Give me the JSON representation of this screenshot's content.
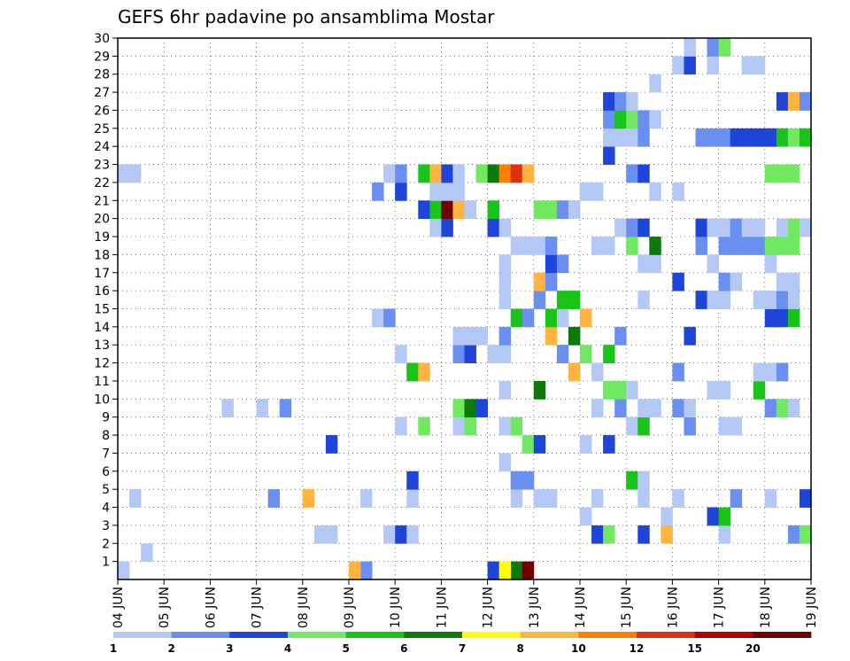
{
  "chart_data": {
    "type": "heatmap",
    "title": "GEFS 6hr padavine po ansamblima Mostar",
    "xlabel": "",
    "ylabel": "",
    "x_tick_labels": [
      "04 JUN",
      "05 JUN",
      "06 JUN",
      "07 JUN",
      "08 JUN",
      "09 JUN",
      "10 JUN",
      "11 JUN",
      "12 JUN",
      "13 JUN",
      "14 JUN",
      "15 JUN",
      "16 JUN",
      "17 JUN",
      "18 JUN",
      "19 JUN"
    ],
    "y_tick_labels": [
      "1",
      "2",
      "3",
      "4",
      "5",
      "6",
      "7",
      "8",
      "9",
      "10",
      "11",
      "12",
      "13",
      "14",
      "15",
      "16",
      "17",
      "18",
      "19",
      "20",
      "21",
      "22",
      "23",
      "24",
      "25",
      "26",
      "27",
      "28",
      "29",
      "30"
    ],
    "xlim": [
      0,
      60
    ],
    "ylim": [
      0,
      30
    ],
    "grid": true,
    "colorbar": {
      "labels": [
        "1",
        "2",
        "3",
        "4",
        "5",
        "6",
        "7",
        "8",
        "10",
        "12",
        "15",
        "20"
      ],
      "colors": [
        "#b4c8f5",
        "#6a8ff0",
        "#1e44d8",
        "#70e860",
        "#18c418",
        "#0b7a0b",
        "#ffff00",
        "#ffb440",
        "#ff8000",
        "#e03010",
        "#b00000",
        "#700000"
      ]
    },
    "cells": [
      {
        "x": 0,
        "y": 0,
        "v": 1
      },
      {
        "x": 21,
        "y": 0,
        "v": 2
      },
      {
        "x": 20,
        "y": 0,
        "v": 8
      },
      {
        "x": 34,
        "y": 0,
        "v": 6
      },
      {
        "x": 35,
        "y": 0,
        "v": 20
      },
      {
        "x": 32,
        "y": 0,
        "v": 3
      },
      {
        "x": 33,
        "y": 0,
        "v": 7
      },
      {
        "x": 2,
        "y": 1,
        "v": 1
      },
      {
        "x": 17,
        "y": 2,
        "v": 1
      },
      {
        "x": 18,
        "y": 2,
        "v": 1
      },
      {
        "x": 23,
        "y": 2,
        "v": 1
      },
      {
        "x": 24,
        "y": 2,
        "v": 3
      },
      {
        "x": 25,
        "y": 2,
        "v": 1
      },
      {
        "x": 41,
        "y": 2,
        "v": 3
      },
      {
        "x": 42,
        "y": 2,
        "v": 4
      },
      {
        "x": 45,
        "y": 2,
        "v": 3
      },
      {
        "x": 47,
        "y": 2,
        "v": 8
      },
      {
        "x": 52,
        "y": 2,
        "v": 1
      },
      {
        "x": 58,
        "y": 2,
        "v": 2
      },
      {
        "x": 59,
        "y": 2,
        "v": 4
      },
      {
        "x": 40,
        "y": 3,
        "v": 1
      },
      {
        "x": 47,
        "y": 3,
        "v": 1
      },
      {
        "x": 51,
        "y": 3,
        "v": 3
      },
      {
        "x": 52,
        "y": 3,
        "v": 5
      },
      {
        "x": 1,
        "y": 4,
        "v": 1
      },
      {
        "x": 16,
        "y": 4,
        "v": 8
      },
      {
        "x": 13,
        "y": 4,
        "v": 2
      },
      {
        "x": 21,
        "y": 4,
        "v": 1
      },
      {
        "x": 25,
        "y": 4,
        "v": 1
      },
      {
        "x": 34,
        "y": 4,
        "v": 1
      },
      {
        "x": 36,
        "y": 4,
        "v": 1
      },
      {
        "x": 37,
        "y": 4,
        "v": 1
      },
      {
        "x": 41,
        "y": 4,
        "v": 1
      },
      {
        "x": 45,
        "y": 4,
        "v": 1
      },
      {
        "x": 48,
        "y": 4,
        "v": 1
      },
      {
        "x": 53,
        "y": 4,
        "v": 2
      },
      {
        "x": 56,
        "y": 4,
        "v": 1
      },
      {
        "x": 59,
        "y": 4,
        "v": 3
      },
      {
        "x": 25,
        "y": 5,
        "v": 3
      },
      {
        "x": 34,
        "y": 5,
        "v": 2
      },
      {
        "x": 35,
        "y": 5,
        "v": 2
      },
      {
        "x": 44,
        "y": 5,
        "v": 5
      },
      {
        "x": 45,
        "y": 5,
        "v": 1
      },
      {
        "x": 33,
        "y": 6,
        "v": 1
      },
      {
        "x": 18,
        "y": 7,
        "v": 3
      },
      {
        "x": 35,
        "y": 7,
        "v": 4
      },
      {
        "x": 36,
        "y": 7,
        "v": 3
      },
      {
        "x": 40,
        "y": 7,
        "v": 1
      },
      {
        "x": 42,
        "y": 7,
        "v": 3
      },
      {
        "x": 24,
        "y": 8,
        "v": 1
      },
      {
        "x": 26,
        "y": 8,
        "v": 4
      },
      {
        "x": 29,
        "y": 8,
        "v": 1
      },
      {
        "x": 30,
        "y": 8,
        "v": 4
      },
      {
        "x": 33,
        "y": 8,
        "v": 1
      },
      {
        "x": 34,
        "y": 8,
        "v": 4
      },
      {
        "x": 44,
        "y": 8,
        "v": 1
      },
      {
        "x": 45,
        "y": 8,
        "v": 5
      },
      {
        "x": 52,
        "y": 8,
        "v": 1
      },
      {
        "x": 53,
        "y": 8,
        "v": 1
      },
      {
        "x": 49,
        "y": 8,
        "v": 2
      },
      {
        "x": 9,
        "y": 9,
        "v": 1
      },
      {
        "x": 12,
        "y": 9,
        "v": 1
      },
      {
        "x": 14,
        "y": 9,
        "v": 2
      },
      {
        "x": 29,
        "y": 9,
        "v": 4
      },
      {
        "x": 30,
        "y": 9,
        "v": 6
      },
      {
        "x": 31,
        "y": 9,
        "v": 3
      },
      {
        "x": 41,
        "y": 9,
        "v": 1
      },
      {
        "x": 43,
        "y": 9,
        "v": 2
      },
      {
        "x": 45,
        "y": 9,
        "v": 1
      },
      {
        "x": 46,
        "y": 9,
        "v": 1
      },
      {
        "x": 48,
        "y": 9,
        "v": 2
      },
      {
        "x": 49,
        "y": 9,
        "v": 1
      },
      {
        "x": 56,
        "y": 9,
        "v": 2
      },
      {
        "x": 57,
        "y": 9,
        "v": 4
      },
      {
        "x": 58,
        "y": 9,
        "v": 1
      },
      {
        "x": 33,
        "y": 10,
        "v": 1
      },
      {
        "x": 36,
        "y": 10,
        "v": 6
      },
      {
        "x": 42,
        "y": 10,
        "v": 4
      },
      {
        "x": 43,
        "y": 10,
        "v": 4
      },
      {
        "x": 44,
        "y": 10,
        "v": 1
      },
      {
        "x": 51,
        "y": 10,
        "v": 1
      },
      {
        "x": 52,
        "y": 10,
        "v": 1
      },
      {
        "x": 55,
        "y": 10,
        "v": 5
      },
      {
        "x": 25,
        "y": 11,
        "v": 5
      },
      {
        "x": 26,
        "y": 11,
        "v": 8
      },
      {
        "x": 39,
        "y": 11,
        "v": 8
      },
      {
        "x": 41,
        "y": 11,
        "v": 1
      },
      {
        "x": 48,
        "y": 11,
        "v": 2
      },
      {
        "x": 55,
        "y": 11,
        "v": 1
      },
      {
        "x": 56,
        "y": 11,
        "v": 1
      },
      {
        "x": 57,
        "y": 11,
        "v": 2
      },
      {
        "x": 24,
        "y": 12,
        "v": 1
      },
      {
        "x": 29,
        "y": 12,
        "v": 2
      },
      {
        "x": 30,
        "y": 12,
        "v": 3
      },
      {
        "x": 32,
        "y": 12,
        "v": 1
      },
      {
        "x": 33,
        "y": 12,
        "v": 1
      },
      {
        "x": 38,
        "y": 12,
        "v": 2
      },
      {
        "x": 40,
        "y": 12,
        "v": 4
      },
      {
        "x": 42,
        "y": 12,
        "v": 5
      },
      {
        "x": 29,
        "y": 13,
        "v": 1
      },
      {
        "x": 30,
        "y": 13,
        "v": 1
      },
      {
        "x": 31,
        "y": 13,
        "v": 1
      },
      {
        "x": 33,
        "y": 13,
        "v": 2
      },
      {
        "x": 37,
        "y": 13,
        "v": 8
      },
      {
        "x": 39,
        "y": 13,
        "v": 6
      },
      {
        "x": 43,
        "y": 13,
        "v": 2
      },
      {
        "x": 49,
        "y": 13,
        "v": 3
      },
      {
        "x": 22,
        "y": 14,
        "v": 1
      },
      {
        "x": 23,
        "y": 14,
        "v": 2
      },
      {
        "x": 34,
        "y": 14,
        "v": 5
      },
      {
        "x": 35,
        "y": 14,
        "v": 2
      },
      {
        "x": 37,
        "y": 14,
        "v": 5
      },
      {
        "x": 38,
        "y": 14,
        "v": 1
      },
      {
        "x": 40,
        "y": 14,
        "v": 8
      },
      {
        "x": 56,
        "y": 14,
        "v": 3
      },
      {
        "x": 57,
        "y": 14,
        "v": 3
      },
      {
        "x": 58,
        "y": 14,
        "v": 5
      },
      {
        "x": 33,
        "y": 15,
        "v": 1
      },
      {
        "x": 36,
        "y": 15,
        "v": 2
      },
      {
        "x": 38,
        "y": 15,
        "v": 5
      },
      {
        "x": 39,
        "y": 15,
        "v": 5
      },
      {
        "x": 45,
        "y": 15,
        "v": 1
      },
      {
        "x": 50,
        "y": 15,
        "v": 3
      },
      {
        "x": 51,
        "y": 15,
        "v": 1
      },
      {
        "x": 52,
        "y": 15,
        "v": 1
      },
      {
        "x": 55,
        "y": 15,
        "v": 1
      },
      {
        "x": 56,
        "y": 15,
        "v": 1
      },
      {
        "x": 57,
        "y": 15,
        "v": 2
      },
      {
        "x": 58,
        "y": 15,
        "v": 1
      },
      {
        "x": 33,
        "y": 16,
        "v": 1
      },
      {
        "x": 36,
        "y": 16,
        "v": 8
      },
      {
        "x": 37,
        "y": 16,
        "v": 2
      },
      {
        "x": 48,
        "y": 16,
        "v": 3
      },
      {
        "x": 52,
        "y": 16,
        "v": 2
      },
      {
        "x": 53,
        "y": 16,
        "v": 1
      },
      {
        "x": 57,
        "y": 16,
        "v": 1
      },
      {
        "x": 58,
        "y": 16,
        "v": 1
      },
      {
        "x": 33,
        "y": 17,
        "v": 1
      },
      {
        "x": 37,
        "y": 17,
        "v": 3
      },
      {
        "x": 38,
        "y": 17,
        "v": 2
      },
      {
        "x": 45,
        "y": 17,
        "v": 1
      },
      {
        "x": 46,
        "y": 17,
        "v": 1
      },
      {
        "x": 51,
        "y": 17,
        "v": 1
      },
      {
        "x": 56,
        "y": 17,
        "v": 1
      },
      {
        "x": 34,
        "y": 18,
        "v": 1
      },
      {
        "x": 35,
        "y": 18,
        "v": 1
      },
      {
        "x": 36,
        "y": 18,
        "v": 1
      },
      {
        "x": 37,
        "y": 18,
        "v": 2
      },
      {
        "x": 41,
        "y": 18,
        "v": 1
      },
      {
        "x": 42,
        "y": 18,
        "v": 1
      },
      {
        "x": 44,
        "y": 18,
        "v": 4
      },
      {
        "x": 46,
        "y": 18,
        "v": 6
      },
      {
        "x": 50,
        "y": 18,
        "v": 2
      },
      {
        "x": 52,
        "y": 18,
        "v": 2
      },
      {
        "x": 53,
        "y": 18,
        "v": 2
      },
      {
        "x": 54,
        "y": 18,
        "v": 2
      },
      {
        "x": 55,
        "y": 18,
        "v": 2
      },
      {
        "x": 56,
        "y": 18,
        "v": 4
      },
      {
        "x": 57,
        "y": 18,
        "v": 4
      },
      {
        "x": 58,
        "y": 18,
        "v": 4
      },
      {
        "x": 27,
        "y": 19,
        "v": 1
      },
      {
        "x": 28,
        "y": 19,
        "v": 3
      },
      {
        "x": 32,
        "y": 19,
        "v": 3
      },
      {
        "x": 33,
        "y": 19,
        "v": 1
      },
      {
        "x": 43,
        "y": 19,
        "v": 1
      },
      {
        "x": 44,
        "y": 19,
        "v": 2
      },
      {
        "x": 45,
        "y": 19,
        "v": 3
      },
      {
        "x": 50,
        "y": 19,
        "v": 3
      },
      {
        "x": 51,
        "y": 19,
        "v": 1
      },
      {
        "x": 52,
        "y": 19,
        "v": 1
      },
      {
        "x": 53,
        "y": 19,
        "v": 2
      },
      {
        "x": 54,
        "y": 19,
        "v": 1
      },
      {
        "x": 55,
        "y": 19,
        "v": 1
      },
      {
        "x": 57,
        "y": 19,
        "v": 1
      },
      {
        "x": 58,
        "y": 19,
        "v": 4
      },
      {
        "x": 59,
        "y": 19,
        "v": 1
      },
      {
        "x": 26,
        "y": 20,
        "v": 3
      },
      {
        "x": 27,
        "y": 20,
        "v": 5
      },
      {
        "x": 28,
        "y": 20,
        "v": 20
      },
      {
        "x": 29,
        "y": 20,
        "v": 8
      },
      {
        "x": 30,
        "y": 20,
        "v": 1
      },
      {
        "x": 32,
        "y": 20,
        "v": 5
      },
      {
        "x": 36,
        "y": 20,
        "v": 4
      },
      {
        "x": 37,
        "y": 20,
        "v": 4
      },
      {
        "x": 38,
        "y": 20,
        "v": 2
      },
      {
        "x": 39,
        "y": 20,
        "v": 1
      },
      {
        "x": 22,
        "y": 21,
        "v": 2
      },
      {
        "x": 24,
        "y": 21,
        "v": 3
      },
      {
        "x": 27,
        "y": 21,
        "v": 1
      },
      {
        "x": 28,
        "y": 21,
        "v": 1
      },
      {
        "x": 29,
        "y": 21,
        "v": 1
      },
      {
        "x": 40,
        "y": 21,
        "v": 1
      },
      {
        "x": 41,
        "y": 21,
        "v": 1
      },
      {
        "x": 46,
        "y": 21,
        "v": 1
      },
      {
        "x": 48,
        "y": 21,
        "v": 1
      },
      {
        "x": 0,
        "y": 22,
        "v": 1
      },
      {
        "x": 1,
        "y": 22,
        "v": 1
      },
      {
        "x": 23,
        "y": 22,
        "v": 1
      },
      {
        "x": 24,
        "y": 22,
        "v": 2
      },
      {
        "x": 26,
        "y": 22,
        "v": 5
      },
      {
        "x": 27,
        "y": 22,
        "v": 8
      },
      {
        "x": 28,
        "y": 22,
        "v": 3
      },
      {
        "x": 29,
        "y": 22,
        "v": 1
      },
      {
        "x": 31,
        "y": 22,
        "v": 4
      },
      {
        "x": 32,
        "y": 22,
        "v": 6
      },
      {
        "x": 33,
        "y": 22,
        "v": 10
      },
      {
        "x": 34,
        "y": 22,
        "v": 12
      },
      {
        "x": 35,
        "y": 22,
        "v": 8
      },
      {
        "x": 44,
        "y": 22,
        "v": 2
      },
      {
        "x": 45,
        "y": 22,
        "v": 3
      },
      {
        "x": 56,
        "y": 22,
        "v": 4
      },
      {
        "x": 57,
        "y": 22,
        "v": 4
      },
      {
        "x": 58,
        "y": 22,
        "v": 4
      },
      {
        "x": 42,
        "y": 23,
        "v": 3
      },
      {
        "x": 42,
        "y": 24,
        "v": 1
      },
      {
        "x": 43,
        "y": 24,
        "v": 1
      },
      {
        "x": 44,
        "y": 24,
        "v": 1
      },
      {
        "x": 45,
        "y": 24,
        "v": 2
      },
      {
        "x": 50,
        "y": 24,
        "v": 2
      },
      {
        "x": 51,
        "y": 24,
        "v": 2
      },
      {
        "x": 52,
        "y": 24,
        "v": 2
      },
      {
        "x": 53,
        "y": 24,
        "v": 3
      },
      {
        "x": 54,
        "y": 24,
        "v": 3
      },
      {
        "x": 55,
        "y": 24,
        "v": 3
      },
      {
        "x": 56,
        "y": 24,
        "v": 3
      },
      {
        "x": 57,
        "y": 24,
        "v": 5
      },
      {
        "x": 58,
        "y": 24,
        "v": 4
      },
      {
        "x": 59,
        "y": 24,
        "v": 5
      },
      {
        "x": 42,
        "y": 25,
        "v": 2
      },
      {
        "x": 43,
        "y": 25,
        "v": 5
      },
      {
        "x": 44,
        "y": 25,
        "v": 4
      },
      {
        "x": 45,
        "y": 25,
        "v": 2
      },
      {
        "x": 46,
        "y": 25,
        "v": 1
      },
      {
        "x": 42,
        "y": 26,
        "v": 3
      },
      {
        "x": 43,
        "y": 26,
        "v": 2
      },
      {
        "x": 44,
        "y": 26,
        "v": 1
      },
      {
        "x": 57,
        "y": 26,
        "v": 3
      },
      {
        "x": 58,
        "y": 26,
        "v": 8
      },
      {
        "x": 59,
        "y": 26,
        "v": 2
      },
      {
        "x": 46,
        "y": 27,
        "v": 1
      },
      {
        "x": 48,
        "y": 28,
        "v": 1
      },
      {
        "x": 49,
        "y": 28,
        "v": 3
      },
      {
        "x": 51,
        "y": 28,
        "v": 1
      },
      {
        "x": 54,
        "y": 28,
        "v": 1
      },
      {
        "x": 55,
        "y": 28,
        "v": 1
      },
      {
        "x": 49,
        "y": 29,
        "v": 1
      },
      {
        "x": 51,
        "y": 29,
        "v": 2
      },
      {
        "x": 52,
        "y": 29,
        "v": 4
      }
    ]
  }
}
